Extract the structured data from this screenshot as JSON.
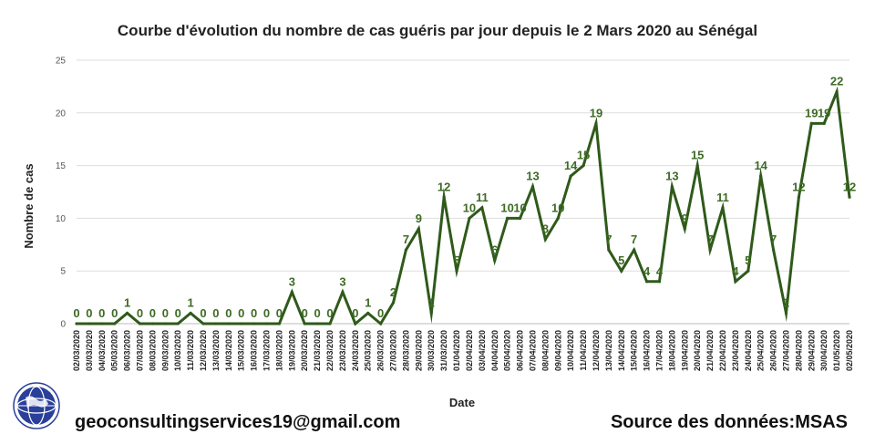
{
  "colors": {
    "line": "#2f5a1a",
    "label": "#3d6b24",
    "grid": "#dddddd",
    "logo": "#2a3f9a"
  },
  "footer": {
    "email": "geoconsultingservices19@gmail.com",
    "source": "Source des données:MSAS"
  },
  "logo": {
    "icon": "globe-icon",
    "text": "GEO CONSULTING SERVICES"
  },
  "chart_data": {
    "type": "line",
    "title": "Courbe d'évolution du nombre de cas guéris par jour depuis le 2 Mars 2020 au Sénégal",
    "xlabel": "Date",
    "ylabel": "Nombre de cas",
    "ylim": [
      0,
      25
    ],
    "yticks": [
      0,
      5,
      10,
      15,
      20,
      25
    ],
    "grid": true,
    "categories": [
      "02/03/2020",
      "03/03/2020",
      "04/03/2020",
      "05/03/2020",
      "06/03/2020",
      "07/03/2020",
      "08/03/2020",
      "09/03/2020",
      "10/03/2020",
      "11/03/2020",
      "12/03/2020",
      "13/03/2020",
      "14/03/2020",
      "15/03/2020",
      "16/03/2020",
      "17/03/2020",
      "18/03/2020",
      "19/03/2020",
      "20/03/2020",
      "21/03/2020",
      "22/03/2020",
      "23/03/2020",
      "24/03/2020",
      "25/03/2020",
      "26/03/2020",
      "27/03/2020",
      "28/03/2020",
      "29/03/2020",
      "30/03/2020",
      "31/03/2020",
      "01/04/2020",
      "02/04/2020",
      "03/04/2020",
      "04/04/2020",
      "05/04/2020",
      "06/04/2020",
      "07/04/2020",
      "08/04/2020",
      "09/04/2020",
      "10/04/2020",
      "11/04/2020",
      "12/04/2020",
      "13/04/2020",
      "14/04/2020",
      "15/04/2020",
      "16/04/2020",
      "17/04/2020",
      "18/04/2020",
      "19/04/2020",
      "20/04/2020",
      "21/04/2020",
      "22/04/2020",
      "23/04/2020",
      "24/04/2020",
      "25/04/2020",
      "26/04/2020",
      "27/04/2020",
      "28/04/2020",
      "29/04/2020",
      "30/04/2020",
      "01/05/2020",
      "02/05/2020"
    ],
    "values": [
      0,
      0,
      0,
      0,
      1,
      0,
      0,
      0,
      0,
      1,
      0,
      0,
      0,
      0,
      0,
      0,
      0,
      3,
      0,
      0,
      0,
      3,
      0,
      1,
      0,
      2,
      7,
      9,
      1,
      12,
      5,
      10,
      11,
      6,
      10,
      10,
      13,
      8,
      10,
      14,
      15,
      19,
      7,
      5,
      7,
      4,
      4,
      13,
      9,
      15,
      7,
      11,
      4,
      5,
      14,
      7,
      1,
      12,
      19,
      19,
      22,
      12
    ],
    "labels": [
      "0",
      "0",
      "0",
      "0",
      "1",
      "0",
      "0",
      "0",
      "0",
      "1",
      "0",
      "0",
      "0",
      "0",
      "0",
      "0",
      "0",
      "3",
      "0",
      "0",
      "0",
      "3",
      "0",
      "1",
      "0",
      "2",
      "7",
      "9",
      "1",
      "12",
      "5",
      "10",
      "11",
      "6",
      "10",
      "10",
      "13",
      "8",
      "10",
      "14",
      "15",
      "19",
      "7",
      "5",
      "7",
      "4",
      "4",
      "13",
      "9",
      "15",
      "7",
      "11",
      "4",
      "5",
      "14",
      "7",
      "1",
      "12",
      "19",
      "19",
      "22",
      "12"
    ]
  }
}
